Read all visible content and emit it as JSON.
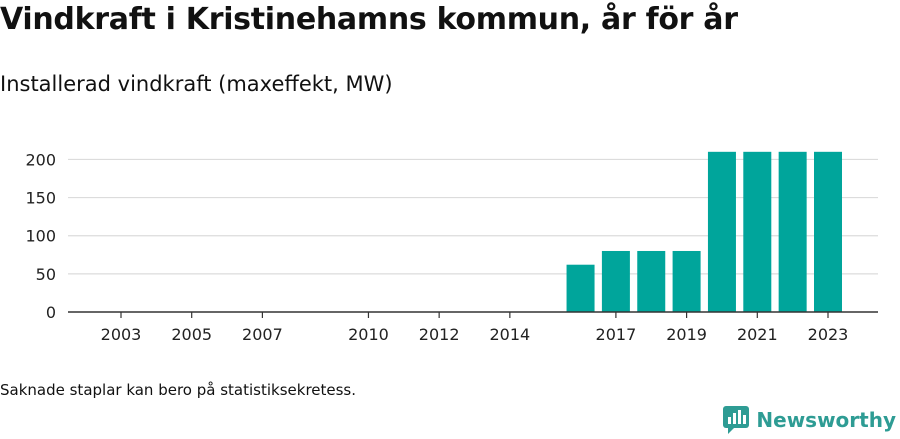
{
  "header": {
    "title": "Vindkraft i Kristinehamns kommun, år för år",
    "subtitle": "Installerad vindkraft (maxeffekt, MW)"
  },
  "footer": {
    "note": "Saknade staplar kan bero på statistiksekretess.",
    "brand": "Newsworthy"
  },
  "colors": {
    "bar": "#00a59b",
    "brand": "#2e9c94"
  },
  "chart_data": {
    "type": "bar",
    "title": "Installerad vindkraft (maxeffekt, MW)",
    "categories": [
      "2003",
      "2004",
      "2005",
      "2006",
      "2007",
      "2008",
      "2009",
      "2010",
      "2011",
      "2012",
      "2013",
      "2014",
      "2015",
      "2016",
      "2017",
      "2018",
      "2019",
      "2020",
      "2021",
      "2022",
      "2023"
    ],
    "values": [
      0,
      0,
      0,
      0,
      0,
      0,
      0,
      0,
      0,
      0,
      0,
      0,
      0,
      62,
      80,
      80,
      80,
      210,
      210,
      210,
      210
    ],
    "x_tick_labels": [
      "2003",
      "2005",
      "2007",
      "2010",
      "2012",
      "2014",
      "2017",
      "2019",
      "2021",
      "2023"
    ],
    "y_ticks": [
      0,
      50,
      100,
      150,
      200
    ],
    "ylim": [
      0,
      215
    ],
    "grid": true,
    "xlabel": "",
    "ylabel": ""
  }
}
